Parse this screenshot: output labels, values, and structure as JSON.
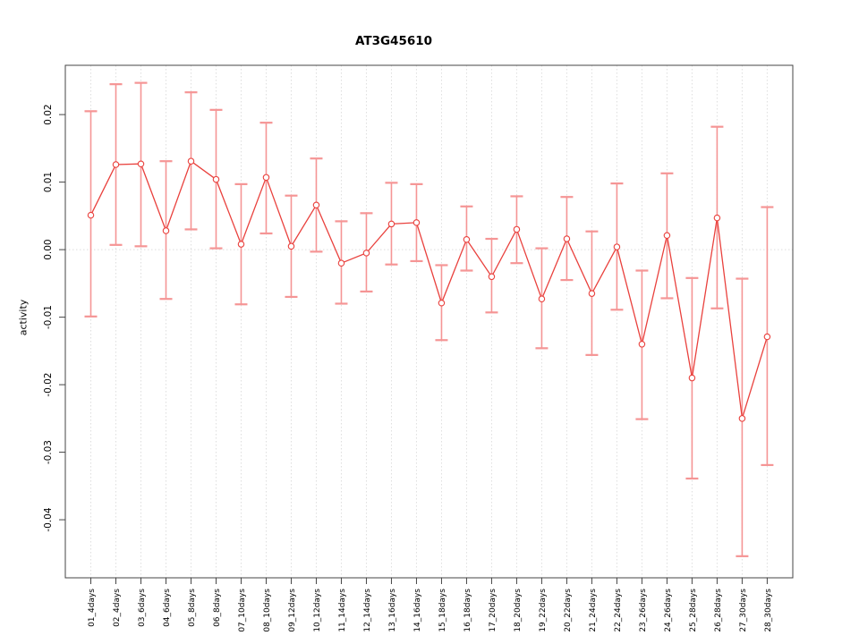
{
  "chart_data": {
    "type": "line",
    "title": "AT3G45610",
    "ylabel": "activity",
    "xlabel": "",
    "legend_position": "none",
    "grid": "dotted vertical gridline per category; dotted horizontal line at y=0",
    "categories": [
      "01_4days",
      "02_4days",
      "03_6days",
      "04_6days",
      "05_8days",
      "06_8days",
      "07_10days",
      "08_10days",
      "09_12days",
      "10_12days",
      "11_14days",
      "12_14days",
      "13_16days",
      "14_16days",
      "15_18days",
      "16_18days",
      "17_20days",
      "18_20days",
      "19_22days",
      "20_22days",
      "21_24days",
      "22_24days",
      "23_26days",
      "24_26days",
      "25_28days",
      "26_28days",
      "27_30days",
      "28_30days"
    ],
    "series": [
      {
        "name": "activity",
        "values": [
          0.0051,
          0.0126,
          0.0127,
          0.0028,
          0.0131,
          0.0104,
          0.0008,
          0.0107,
          0.0005,
          0.0066,
          -0.002,
          -0.0005,
          0.0038,
          0.004,
          -0.0079,
          0.0015,
          -0.004,
          0.003,
          -0.0073,
          0.0016,
          -0.0065,
          0.0004,
          -0.014,
          0.0021,
          -0.019,
          0.0047,
          -0.025,
          -0.0129
        ]
      }
    ],
    "error_low": [
      -0.0099,
      0.0007,
      0.0005,
      -0.0073,
      0.003,
      0.0002,
      -0.0081,
      0.0024,
      -0.007,
      -0.0003,
      -0.008,
      -0.0062,
      -0.0022,
      -0.0017,
      -0.0134,
      -0.0031,
      -0.0093,
      -0.002,
      -0.0146,
      -0.0045,
      -0.0156,
      -0.0089,
      -0.0251,
      -0.0072,
      -0.0339,
      -0.0087,
      -0.0454,
      -0.0319
    ],
    "error_high": [
      0.0205,
      0.0245,
      0.0247,
      0.0131,
      0.0233,
      0.0207,
      0.0097,
      0.0188,
      0.008,
      0.0135,
      0.0042,
      0.0054,
      0.0099,
      0.0097,
      -0.0023,
      0.0064,
      0.0016,
      0.0079,
      0.0002,
      0.0078,
      0.0027,
      0.0098,
      -0.0031,
      0.0113,
      -0.0042,
      0.0182,
      -0.0043,
      0.0063
    ],
    "ytick_labels": [
      "0.02",
      "0.01",
      "0.00",
      "-0.01",
      "-0.02",
      "-0.03",
      "-0.04"
    ],
    "ytick_values": [
      0.02,
      0.01,
      0.0,
      -0.01,
      -0.02,
      -0.03,
      -0.04
    ],
    "ylim": [
      -0.0486,
      0.0273
    ],
    "colors": {
      "series": "#e9413d",
      "error_bars": "#f59595",
      "gridlines": "#dedede",
      "axis_box": "#444444",
      "text": "#000000"
    }
  }
}
